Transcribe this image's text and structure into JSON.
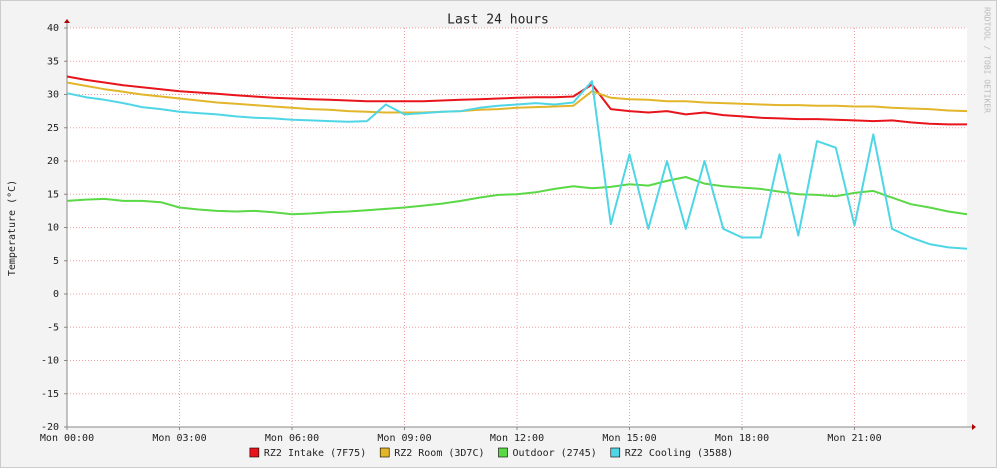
{
  "chart_data": {
    "type": "line",
    "title": "Last 24 hours",
    "y_label": "Temperature (°C)",
    "watermark": "RRDTOOL / TOBI OETIKER",
    "x": [
      0,
      0.5,
      1,
      1.5,
      2,
      2.5,
      3,
      3.5,
      4,
      4.5,
      5,
      5.5,
      6,
      6.5,
      7,
      7.5,
      8,
      8.5,
      9,
      9.5,
      10,
      10.5,
      11,
      11.5,
      12,
      12.5,
      13,
      13.5,
      14,
      14.5,
      15,
      15.5,
      16,
      16.5,
      17,
      17.5,
      18,
      18.5,
      19,
      19.5,
      20,
      20.5,
      21,
      21.5,
      22,
      22.5,
      23,
      23.5,
      24
    ],
    "xlim": [
      0,
      24
    ],
    "xticks": [
      {
        "value": 0,
        "label": "Mon 00:00"
      },
      {
        "value": 3,
        "label": "Mon 03:00"
      },
      {
        "value": 6,
        "label": "Mon 06:00"
      },
      {
        "value": 9,
        "label": "Mon 09:00"
      },
      {
        "value": 12,
        "label": "Mon 12:00"
      },
      {
        "value": 15,
        "label": "Mon 15:00"
      },
      {
        "value": 18,
        "label": "Mon 18:00"
      },
      {
        "value": 21,
        "label": "Mon 21:00"
      }
    ],
    "ylim": [
      -20,
      40
    ],
    "yticks": [
      -20,
      -15,
      -10,
      -5,
      0,
      5,
      10,
      15,
      20,
      25,
      30,
      35,
      40
    ],
    "grid": true,
    "legend": "bottom",
    "series": [
      {
        "name": "RZ2 Intake (7F75)",
        "color": "#e8141c",
        "values": [
          32.7,
          32.2,
          31.8,
          31.4,
          31.1,
          30.8,
          30.5,
          30.3,
          30.1,
          29.9,
          29.7,
          29.5,
          29.4,
          29.3,
          29.2,
          29.1,
          29.0,
          29.0,
          29.0,
          29.0,
          29.1,
          29.2,
          29.3,
          29.4,
          29.5,
          29.6,
          29.6,
          29.7,
          31.5,
          27.8,
          27.5,
          27.3,
          27.5,
          27.0,
          27.3,
          26.9,
          26.7,
          26.5,
          26.4,
          26.3,
          26.3,
          26.2,
          26.1,
          26.0,
          26.1,
          25.8,
          25.6,
          25.5,
          25.5
        ]
      },
      {
        "name": "RZ2 Room (3D7C)",
        "color": "#e3b52a",
        "values": [
          31.8,
          31.3,
          30.8,
          30.4,
          30.0,
          29.7,
          29.4,
          29.1,
          28.8,
          28.6,
          28.4,
          28.2,
          28.0,
          27.8,
          27.7,
          27.5,
          27.4,
          27.3,
          27.3,
          27.3,
          27.4,
          27.5,
          27.7,
          27.8,
          28.0,
          28.1,
          28.2,
          28.3,
          30.5,
          29.5,
          29.3,
          29.2,
          29.0,
          29.0,
          28.8,
          28.7,
          28.6,
          28.5,
          28.4,
          28.4,
          28.3,
          28.3,
          28.2,
          28.2,
          28.0,
          27.9,
          27.8,
          27.6,
          27.5
        ]
      },
      {
        "name": "Outdoor (2745)",
        "color": "#5ad846",
        "values": [
          14.0,
          14.2,
          14.3,
          14.0,
          14.0,
          13.8,
          13.0,
          12.7,
          12.5,
          12.4,
          12.5,
          12.3,
          12.0,
          12.1,
          12.3,
          12.4,
          12.6,
          12.8,
          13.0,
          13.3,
          13.6,
          14.0,
          14.5,
          14.9,
          15.0,
          15.3,
          15.8,
          16.2,
          15.9,
          16.1,
          16.5,
          16.3,
          17.0,
          17.6,
          16.6,
          16.2,
          16.0,
          15.8,
          15.4,
          15.0,
          14.9,
          14.7,
          15.2,
          15.5,
          14.5,
          13.5,
          13.0,
          12.4,
          12.0
        ]
      },
      {
        "name": "RZ2 Cooling (3588)",
        "color": "#4fd6e6",
        "values": [
          30.2,
          29.6,
          29.2,
          28.7,
          28.1,
          27.8,
          27.4,
          27.2,
          27.0,
          26.7,
          26.5,
          26.4,
          26.2,
          26.1,
          26.0,
          25.9,
          26.0,
          28.5,
          27.0,
          27.2,
          27.4,
          27.5,
          28.0,
          28.3,
          28.5,
          28.7,
          28.5,
          28.8,
          32.0,
          10.5,
          21.0,
          9.8,
          20.0,
          9.8,
          20.0,
          9.8,
          8.5,
          8.5,
          21.0,
          8.8,
          23.0,
          22.0,
          10.3,
          24.0,
          9.8,
          8.5,
          7.5,
          7.0,
          6.8
        ]
      }
    ]
  }
}
